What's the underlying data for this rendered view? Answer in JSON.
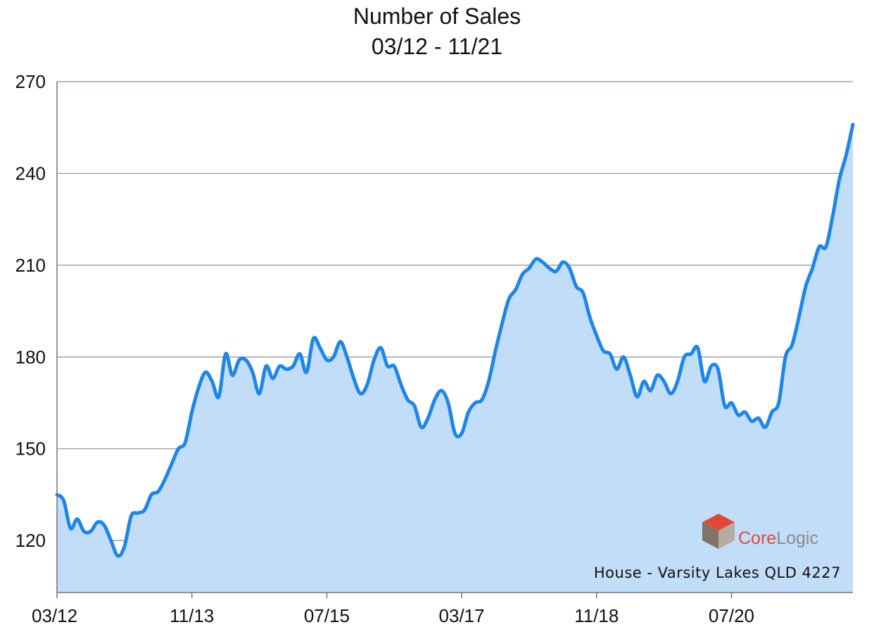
{
  "chart_data": {
    "type": "area",
    "title": "Number of Sales",
    "subtitle": "03/12 - 11/21",
    "xlabel": "",
    "ylabel": "",
    "ylim": [
      103,
      270
    ],
    "yticks": [
      120,
      150,
      180,
      210,
      240,
      270
    ],
    "xticks": [
      "03/12",
      "11/13",
      "07/15",
      "03/17",
      "11/18",
      "07/20"
    ],
    "xlim": [
      "03/12",
      "11/21"
    ],
    "grid": "horizontal",
    "legend": "none",
    "series": [
      {
        "color": "#1e86e8",
        "fill": "#c2ddf8",
        "points": [
          [
            "03/12",
            135
          ],
          [
            "04/12",
            133
          ],
          [
            "05/12",
            124
          ],
          [
            "06/12",
            127
          ],
          [
            "07/12",
            123
          ],
          [
            "08/12",
            123
          ],
          [
            "09/12",
            126
          ],
          [
            "10/12",
            125
          ],
          [
            "11/12",
            120
          ],
          [
            "12/12",
            115
          ],
          [
            "01/13",
            118
          ],
          [
            "02/13",
            128
          ],
          [
            "03/13",
            129
          ],
          [
            "04/13",
            130
          ],
          [
            "05/13",
            135
          ],
          [
            "06/13",
            136
          ],
          [
            "07/13",
            140
          ],
          [
            "08/13",
            145
          ],
          [
            "09/13",
            150
          ],
          [
            "10/13",
            152
          ],
          [
            "11/13",
            162
          ],
          [
            "12/13",
            170
          ],
          [
            "01/14",
            175
          ],
          [
            "02/14",
            172
          ],
          [
            "03/14",
            167
          ],
          [
            "04/14",
            181
          ],
          [
            "05/14",
            174
          ],
          [
            "06/14",
            179
          ],
          [
            "07/14",
            179
          ],
          [
            "08/14",
            175
          ],
          [
            "09/14",
            168
          ],
          [
            "10/14",
            177
          ],
          [
            "11/14",
            173
          ],
          [
            "12/14",
            177
          ],
          [
            "01/15",
            176
          ],
          [
            "02/15",
            177
          ],
          [
            "03/15",
            181
          ],
          [
            "04/15",
            175
          ],
          [
            "05/15",
            186
          ],
          [
            "06/15",
            183
          ],
          [
            "07/15",
            179
          ],
          [
            "08/15",
            180
          ],
          [
            "09/15",
            185
          ],
          [
            "10/15",
            180
          ],
          [
            "11/15",
            173
          ],
          [
            "12/15",
            168
          ],
          [
            "01/16",
            171
          ],
          [
            "02/16",
            179
          ],
          [
            "03/16",
            183
          ],
          [
            "04/16",
            177
          ],
          [
            "05/16",
            177
          ],
          [
            "06/16",
            171
          ],
          [
            "07/16",
            166
          ],
          [
            "08/16",
            164
          ],
          [
            "09/16",
            157
          ],
          [
            "10/16",
            160
          ],
          [
            "11/16",
            166
          ],
          [
            "12/16",
            169
          ],
          [
            "01/17",
            165
          ],
          [
            "02/17",
            155
          ],
          [
            "03/17",
            155
          ],
          [
            "04/17",
            162
          ],
          [
            "05/17",
            165
          ],
          [
            "06/17",
            166
          ],
          [
            "07/17",
            172
          ],
          [
            "08/17",
            182
          ],
          [
            "09/17",
            191
          ],
          [
            "10/17",
            199
          ],
          [
            "11/17",
            202
          ],
          [
            "12/17",
            207
          ],
          [
            "01/18",
            209
          ],
          [
            "02/18",
            212
          ],
          [
            "03/18",
            211
          ],
          [
            "04/18",
            209
          ],
          [
            "05/18",
            208
          ],
          [
            "06/18",
            211
          ],
          [
            "07/18",
            209
          ],
          [
            "08/18",
            203
          ],
          [
            "09/18",
            201
          ],
          [
            "10/18",
            193
          ],
          [
            "11/18",
            187
          ],
          [
            "12/18",
            182
          ],
          [
            "01/19",
            181
          ],
          [
            "02/19",
            176
          ],
          [
            "03/19",
            180
          ],
          [
            "04/19",
            174
          ],
          [
            "05/19",
            167
          ],
          [
            "06/19",
            172
          ],
          [
            "07/19",
            169
          ],
          [
            "08/19",
            174
          ],
          [
            "09/19",
            172
          ],
          [
            "10/19",
            168
          ],
          [
            "11/19",
            172
          ],
          [
            "12/19",
            180
          ],
          [
            "01/20",
            181
          ],
          [
            "02/20",
            183
          ],
          [
            "03/20",
            172
          ],
          [
            "04/20",
            177
          ],
          [
            "05/20",
            176
          ],
          [
            "06/20",
            164
          ],
          [
            "07/20",
            165
          ],
          [
            "08/20",
            161
          ],
          [
            "09/20",
            162
          ],
          [
            "10/20",
            159
          ],
          [
            "11/20",
            160
          ],
          [
            "12/20",
            157
          ],
          [
            "01/21",
            162
          ],
          [
            "02/21",
            165
          ],
          [
            "03/21",
            180
          ],
          [
            "04/21",
            184
          ],
          [
            "05/21",
            193
          ],
          [
            "06/21",
            203
          ],
          [
            "07/21",
            209
          ],
          [
            "08/21",
            216
          ],
          [
            "09/21",
            216
          ],
          [
            "10/21",
            226
          ],
          [
            "11/21",
            238
          ],
          [
            "12/21",
            246
          ],
          [
            "01/22",
            256
          ]
        ]
      }
    ]
  },
  "logo": {
    "text": "CoreLogic",
    "core_color": "#e24a3a",
    "logic_color": "#8a8a8a",
    "cube_top": "#e2473a",
    "cube_left": "#7f7466",
    "cube_right": "#b5aca0"
  },
  "caption": "House - Varsity Lakes QLD 4227",
  "colors": {
    "line": "#1e86e8",
    "area": "#c2ddf8",
    "grid": "#8a8f96",
    "axis": "#6f747a",
    "text": "#111111"
  }
}
